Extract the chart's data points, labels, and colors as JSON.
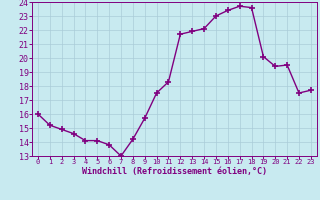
{
  "x": [
    0,
    1,
    2,
    3,
    4,
    5,
    6,
    7,
    8,
    9,
    10,
    11,
    12,
    13,
    14,
    15,
    16,
    17,
    18,
    19,
    20,
    21,
    22,
    23
  ],
  "y": [
    16.0,
    15.2,
    14.9,
    14.6,
    14.1,
    14.1,
    13.8,
    13.0,
    14.2,
    15.7,
    17.5,
    18.3,
    21.7,
    21.9,
    22.1,
    23.0,
    23.4,
    23.7,
    23.6,
    20.1,
    19.4,
    19.5,
    17.5,
    17.7
  ],
  "line_color": "#800080",
  "marker": "+",
  "marker_size": 5,
  "marker_lw": 1.2,
  "bg_color": "#c8eaf0",
  "grid_color": "#aaccd8",
  "xlabel": "Windchill (Refroidissement éolien,°C)",
  "xlabel_color": "#800080",
  "tick_color": "#800080",
  "spine_color": "#800080",
  "ylim": [
    13,
    24
  ],
  "xlim": [
    -0.5,
    23.5
  ],
  "yticks": [
    13,
    14,
    15,
    16,
    17,
    18,
    19,
    20,
    21,
    22,
    23,
    24
  ],
  "xticks": [
    0,
    1,
    2,
    3,
    4,
    5,
    6,
    7,
    8,
    9,
    10,
    11,
    12,
    13,
    14,
    15,
    16,
    17,
    18,
    19,
    20,
    21,
    22,
    23
  ],
  "ytick_fontsize": 6.0,
  "xtick_fontsize": 5.0,
  "xlabel_fontsize": 6.0,
  "linewidth": 1.0
}
